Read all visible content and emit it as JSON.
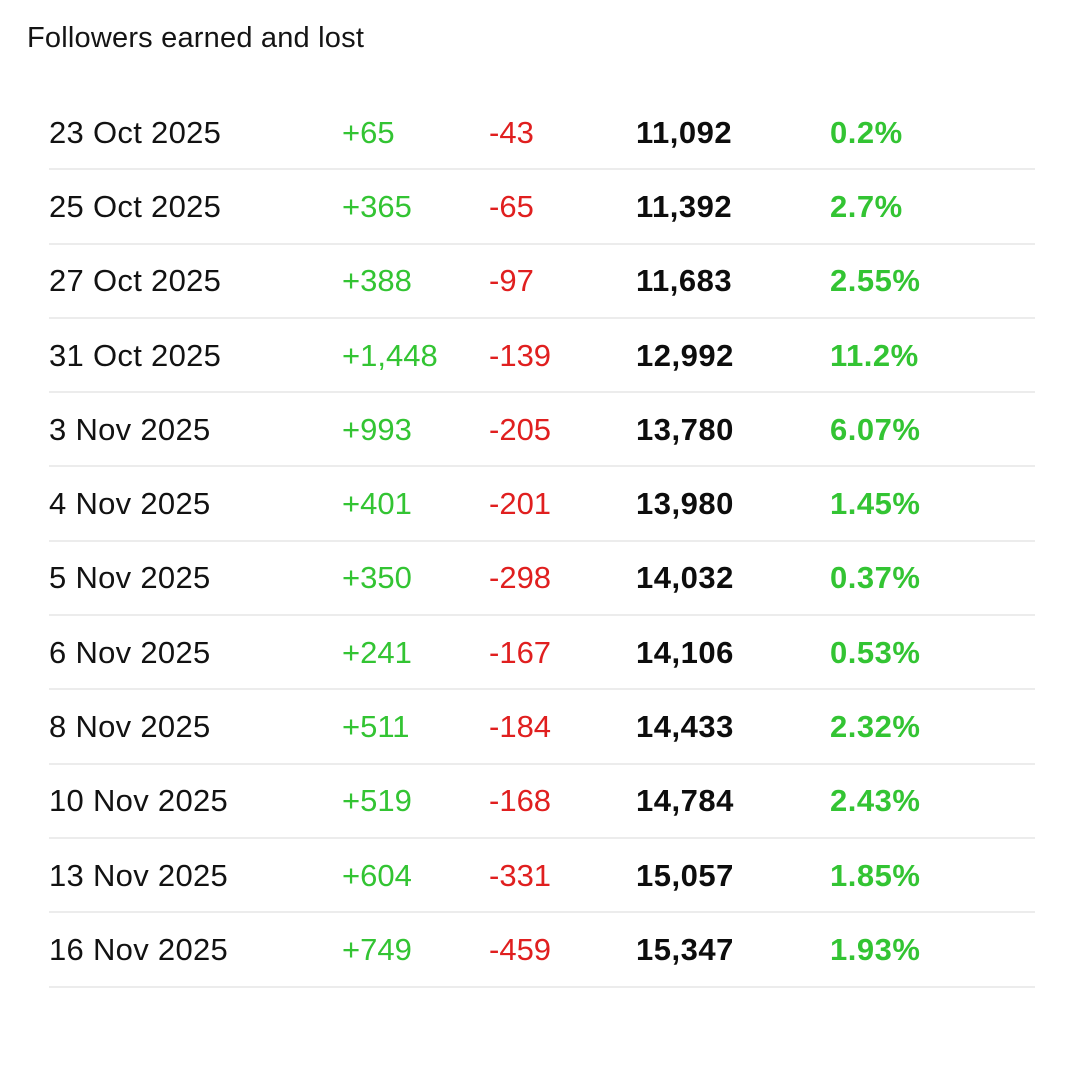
{
  "title": "Followers earned and lost",
  "colors": {
    "gain_green": "#33c433",
    "loss_red": "#e01f1f",
    "text_black": "#121212",
    "divider_gray": "#ececec",
    "background": "#ffffff"
  },
  "chart_data": {
    "type": "table",
    "title": "Followers earned and lost",
    "columns": [
      "date",
      "followers_gained",
      "followers_lost",
      "total_followers",
      "percent_change"
    ],
    "rows": [
      {
        "date": "23 Oct 2025",
        "gained": "+65",
        "lost": "-43",
        "total": "11,092",
        "pct": "0.2%"
      },
      {
        "date": "25 Oct 2025",
        "gained": "+365",
        "lost": "-65",
        "total": "11,392",
        "pct": "2.7%"
      },
      {
        "date": "27 Oct 2025",
        "gained": "+388",
        "lost": "-97",
        "total": "11,683",
        "pct": "2.55%"
      },
      {
        "date": "31 Oct 2025",
        "gained": "+1,448",
        "lost": "-139",
        "total": "12,992",
        "pct": "11.2%"
      },
      {
        "date": "3 Nov 2025",
        "gained": "+993",
        "lost": "-205",
        "total": "13,780",
        "pct": "6.07%"
      },
      {
        "date": "4 Nov 2025",
        "gained": "+401",
        "lost": "-201",
        "total": "13,980",
        "pct": "1.45%"
      },
      {
        "date": "5 Nov 2025",
        "gained": "+350",
        "lost": "-298",
        "total": "14,032",
        "pct": "0.37%"
      },
      {
        "date": "6 Nov 2025",
        "gained": "+241",
        "lost": "-167",
        "total": "14,106",
        "pct": "0.53%"
      },
      {
        "date": "8 Nov 2025",
        "gained": "+511",
        "lost": "-184",
        "total": "14,433",
        "pct": "2.32%"
      },
      {
        "date": "10 Nov 2025",
        "gained": "+519",
        "lost": "-168",
        "total": "14,784",
        "pct": "2.43%"
      },
      {
        "date": "13 Nov 2025",
        "gained": "+604",
        "lost": "-331",
        "total": "15,057",
        "pct": "1.85%"
      },
      {
        "date": "16 Nov 2025",
        "gained": "+749",
        "lost": "-459",
        "total": "15,347",
        "pct": "1.93%"
      }
    ]
  }
}
